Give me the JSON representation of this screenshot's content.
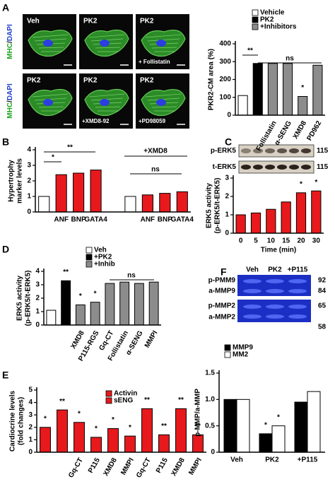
{
  "panel_labels": [
    "A",
    "B",
    "C",
    "D",
    "E",
    "F"
  ],
  "micrographs": {
    "stain": [
      "MHC",
      "/",
      "DAPI"
    ],
    "tiles": [
      {
        "top": "Veh"
      },
      {
        "top": "PK2"
      },
      {
        "top": "PK2",
        "bottom": "+ Follistatin"
      },
      {
        "top": "PK2"
      },
      {
        "top": "PK2",
        "bottom": "+XMD8-92"
      },
      {
        "top": "PK2",
        "bottom": "+PD98059"
      }
    ]
  },
  "blots": [
    {
      "lanes": [
        "p-ERK5",
        "t-ERK5"
      ],
      "sizes": [
        115,
        115
      ]
    },
    {
      "header": [
        "Veh",
        "PK2",
        "+P115"
      ],
      "lanes": [
        "p-PMM9",
        "a-MMP9",
        "p-MMP2",
        "a-MMP2"
      ],
      "sizes": [
        92,
        84,
        65,
        58
      ]
    }
  ],
  "chart_data": [
    {
      "type": "bar",
      "ylabel": "PKR2-CM area (%)",
      "categories": [
        null,
        null,
        "Follistatin",
        "α-SENG",
        "XMD8",
        "PD962"
      ],
      "values": [
        110,
        290,
        290,
        290,
        105,
        280
      ],
      "colors": [
        "#ffffff",
        "#000000",
        "#8c8c8c",
        "#8c8c8c",
        "#8c8c8c",
        "#8c8c8c"
      ],
      "ylim": [
        0,
        400
      ],
      "yticks": [
        0,
        100,
        200,
        300,
        400
      ],
      "legend": [
        {
          "name": "Vehicle",
          "color": "#ffffff"
        },
        {
          "name": "PK2",
          "color": "#000000"
        },
        {
          "name": "+Inhibitors",
          "color": "#8c8c8c"
        }
      ],
      "annotations": [
        "**",
        "ns",
        "*"
      ]
    },
    {
      "type": "bar",
      "ylabel": [
        "Hypertrophy",
        "marker levels"
      ],
      "categories": [
        null,
        "ANF",
        "BNP",
        "GATA4",
        null,
        "ANF",
        "BNP",
        "GATA4"
      ],
      "values": [
        1.0,
        2.4,
        2.5,
        2.7,
        1.0,
        1.1,
        1.2,
        1.3
      ],
      "colors": [
        "#ffffff",
        "#e8191c",
        "#e8191c",
        "#e8191c",
        "#ffffff",
        "#e8191c",
        "#e8191c",
        "#e8191c"
      ],
      "ylim": [
        0,
        4
      ],
      "yticks": [
        0,
        1,
        2,
        3,
        4
      ],
      "annotations": [
        "*",
        "**",
        "+XMD8",
        "ns"
      ]
    },
    {
      "type": "bar",
      "ylabel": [
        "ERK5 activity",
        "(p-ERK5/t-ERK5)"
      ],
      "xlabel": "Time (min)",
      "categories": [
        "0",
        "5",
        "10",
        "15",
        "20",
        "30"
      ],
      "values": [
        1.0,
        1.1,
        1.3,
        1.7,
        2.2,
        2.3
      ],
      "color": "#e8191c",
      "ylim": [
        0,
        3
      ],
      "yticks": [
        0,
        1,
        2,
        3
      ],
      "annotations": [
        "*",
        "*"
      ]
    },
    {
      "type": "bar",
      "ylabel": [
        "ERK5 activity",
        "(p-ERK5/t-ERK5)"
      ],
      "categories": [
        null,
        null,
        "XMD8",
        "P115-RGS",
        "Gq-CT",
        "Follistatin",
        "α-SENG",
        "MMPI"
      ],
      "values": [
        1.1,
        3.3,
        1.5,
        1.7,
        3.1,
        3.2,
        3.1,
        3.2
      ],
      "colors": [
        "#ffffff",
        "#000000",
        "#8c8c8c",
        "#8c8c8c",
        "#8c8c8c",
        "#8c8c8c",
        "#8c8c8c",
        "#8c8c8c"
      ],
      "ylim": [
        0,
        4
      ],
      "yticks": [
        0,
        1,
        2,
        3,
        4
      ],
      "legend": [
        {
          "name": "Veh",
          "color": "#ffffff"
        },
        {
          "name": "+PK2",
          "color": "#000000"
        },
        {
          "name": "+Inhib",
          "color": "#8c8c8c"
        }
      ],
      "annotations": [
        "**",
        "*",
        "*",
        "ns"
      ]
    },
    {
      "type": "bar",
      "ylabel": [
        "Cardiocrine levels",
        "(fold changes)"
      ],
      "categories": [
        null,
        null,
        "Gq-CT",
        "P115",
        "XMD8",
        "MMPI",
        "Gq-CT",
        "P115",
        "XMD8",
        "MMPI"
      ],
      "values": [
        2.0,
        3.4,
        2.4,
        1.2,
        1.9,
        1.3,
        3.5,
        1.4,
        3.5,
        1.4
      ],
      "color": "#e8191c",
      "ylim": [
        0,
        5
      ],
      "yticks": [
        0,
        1,
        2,
        3,
        4,
        5
      ],
      "legend": [
        {
          "name": "Activin",
          "color": "#e8191c"
        },
        {
          "name": "sENG",
          "color": "#e8191c"
        }
      ],
      "annotations": [
        "*",
        "**",
        "*",
        "*",
        "*",
        "*",
        "**",
        "**",
        "**",
        "**"
      ]
    },
    {
      "type": "bar",
      "ylabel": "p-MMP/a-MMP",
      "categories": [
        "Veh",
        "PK2",
        "+P115"
      ],
      "series": [
        {
          "name": "MMP9",
          "color": "#000000",
          "values": [
            1.0,
            0.35,
            0.95
          ]
        },
        {
          "name": "MM2",
          "color": "#ffffff",
          "values": [
            1.0,
            0.5,
            1.15
          ]
        }
      ],
      "ylim": [
        0,
        1.5
      ],
      "yticks": [
        0,
        0.5,
        {
          "value": 1,
          "label": "1.0"
        },
        1.5
      ],
      "annotations": [
        "*",
        "*"
      ]
    }
  ]
}
